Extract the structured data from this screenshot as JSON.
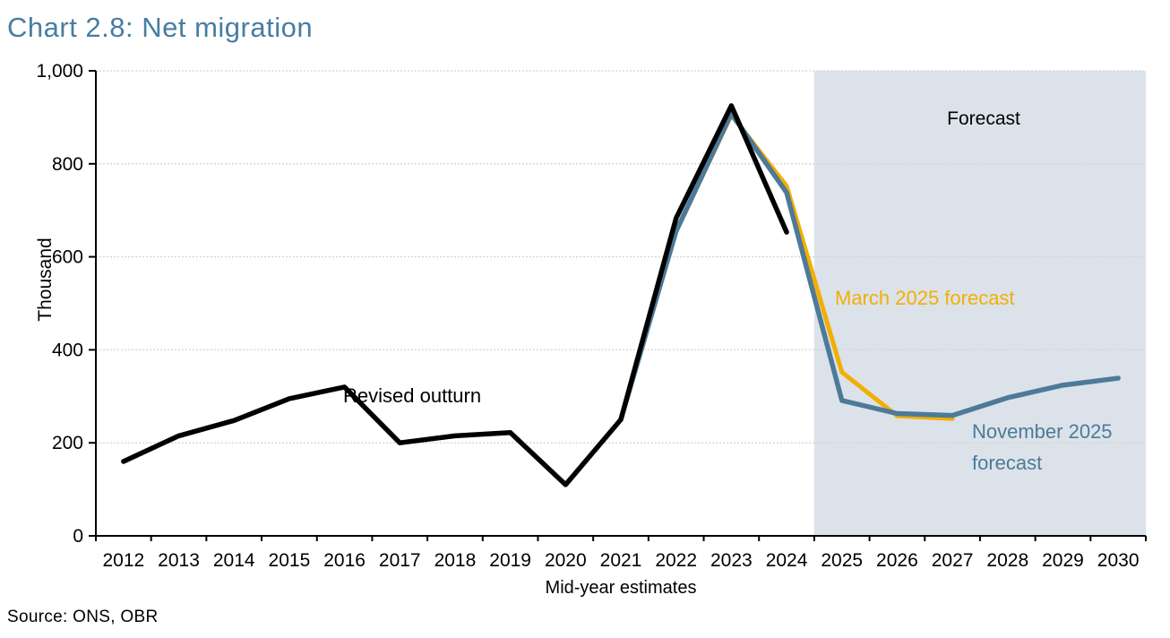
{
  "page": {
    "title": "Chart 2.8: Net migration",
    "source": "Source: ONS, OBR"
  },
  "colors": {
    "title": "#477DA0",
    "outturn_line": "#000000",
    "march_line": "#F2AF00",
    "november_line": "#4D7A99",
    "forecast_band": "#DCE2EA",
    "gridline": "#D5D5D5",
    "axis": "#000000",
    "tick_label": "#000000"
  },
  "annotations": {
    "forecast": "Forecast",
    "revised_outturn": "Revised outturn",
    "march": "March 2025 forecast",
    "nov_line1": "November 2025",
    "nov_line2": "forecast"
  },
  "chart_data": {
    "type": "line",
    "title": "Chart 2.8: Net migration",
    "xlabel": "Mid-year estimates",
    "ylabel": "Thousand",
    "ylim": [
      0,
      1000
    ],
    "yticks": [
      0,
      200,
      400,
      600,
      800,
      1000
    ],
    "ytick_labels": [
      "0",
      "200",
      "400",
      "600",
      "800",
      "1,000"
    ],
    "x_years": [
      2012,
      2013,
      2014,
      2015,
      2016,
      2017,
      2018,
      2019,
      2020,
      2021,
      2022,
      2023,
      2024,
      2025,
      2026,
      2027,
      2028,
      2029,
      2030
    ],
    "grid": "horizontal-dotted",
    "legend_position": "inline-annotations",
    "forecast_band": {
      "label": "Forecast",
      "start_after_year": 2024,
      "end_year": 2030
    },
    "series": [
      {
        "name": "March 2025 forecast",
        "color_key": "march_line",
        "x": [
          2022,
          2023,
          2024,
          2025,
          2026,
          2027
        ],
        "values": [
          655,
          905,
          752,
          352,
          258,
          252
        ]
      },
      {
        "name": "November 2025 forecast",
        "color_key": "november_line",
        "x": [
          2021,
          2022,
          2023,
          2024,
          2025,
          2026,
          2027,
          2028,
          2029,
          2030
        ],
        "values": [
          250,
          655,
          908,
          738,
          291,
          263,
          259,
          297,
          324,
          339
        ]
      },
      {
        "name": "Revised outturn",
        "color_key": "outturn_line",
        "x": [
          2012,
          2013,
          2014,
          2015,
          2016,
          2017,
          2018,
          2019,
          2020,
          2021,
          2022,
          2023,
          2024
        ],
        "values": [
          160,
          215,
          248,
          295,
          320,
          200,
          215,
          222,
          110,
          250,
          683,
          925,
          653
        ]
      }
    ]
  }
}
